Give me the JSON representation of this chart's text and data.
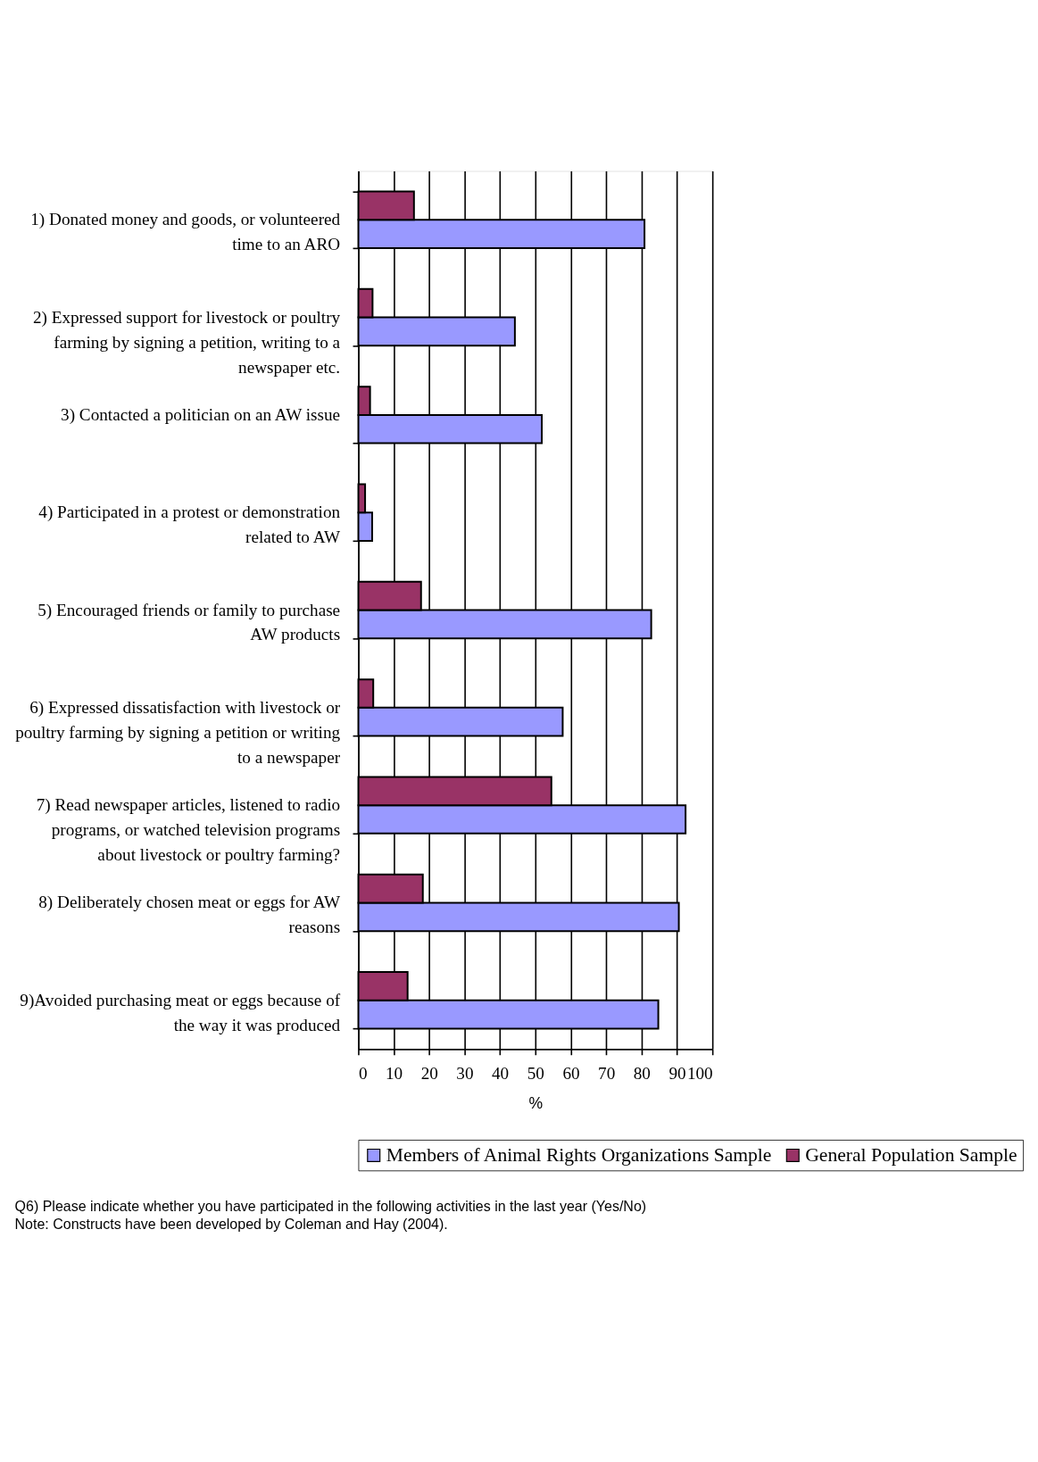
{
  "chart_data": {
    "type": "bar",
    "orientation": "horizontal",
    "categories": [
      "1) Donated money and goods, or volunteered\ntime to an ARO",
      "2) Expressed support for livestock or poultry\nfarming by signing a petition, writing to a\nnewspaper etc.",
      "3) Contacted a politician on an AW issue",
      "4) Participated in a protest or demonstration\nrelated to AW",
      "5) Encouraged friends or family to purchase\nAW products",
      "6) Expressed dissatisfaction with livestock or\npoultry farming by signing a petition or writing\nto a newspaper",
      "7) Read newspaper articles, listened to radio\nprograms, or watched television programs\nabout livestock or poultry farming?",
      "8) Deliberately chosen meat or eggs for AW\nreasons",
      "9)Avoided purchasing meat or eggs because of\nthe way it was produced"
    ],
    "series": [
      {
        "name": "Members of Animal Rights Organizations Sample",
        "color": "#9999ff",
        "values": [
          80.8,
          44.2,
          51.8,
          3.9,
          82.7,
          57.7,
          92.4,
          90.5,
          84.7
        ]
      },
      {
        "name": "General Population Sample",
        "color": "#993366",
        "values": [
          15.7,
          4.0,
          3.3,
          1.9,
          17.7,
          4.2,
          54.5,
          18.2,
          13.9
        ]
      }
    ],
    "xlabel": "%",
    "xlim": [
      0,
      100
    ],
    "xticks": [
      0,
      10,
      20,
      30,
      40,
      50,
      60,
      70,
      80,
      90,
      100
    ],
    "grid": "x",
    "legend": "bottom",
    "annotations": [
      "Q6) Please indicate whether you have participated in the following activities in the last year (Yes/No)",
      "Note: Constructs have been developed by Coleman and Hay (2004)."
    ]
  }
}
